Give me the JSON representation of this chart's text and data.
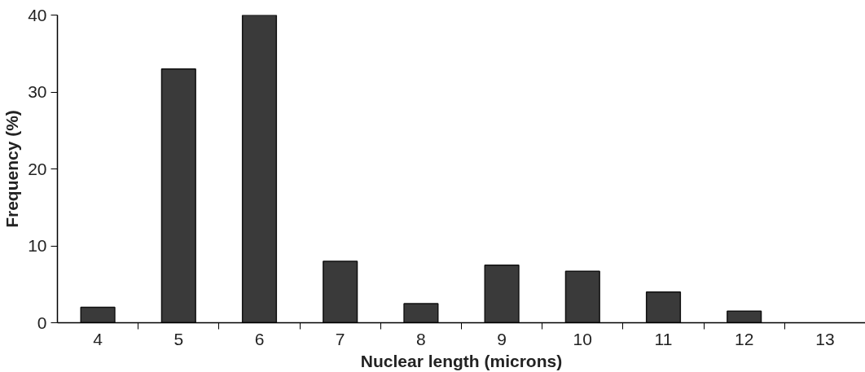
{
  "chart_data": {
    "type": "bar",
    "xlabel": "Nuclear length (microns)",
    "ylabel": "Frequency (%)",
    "categories": [
      "4",
      "5",
      "6",
      "7",
      "8",
      "9",
      "10",
      "11",
      "12",
      "13"
    ],
    "values": [
      2,
      33,
      40,
      8,
      2.5,
      7.5,
      6.7,
      4,
      1.5,
      null
    ],
    "color": "#3a3a3a",
    "ylim": [
      0,
      40
    ],
    "yticks": [
      0,
      10,
      20,
      30,
      40
    ],
    "grid": false
  }
}
